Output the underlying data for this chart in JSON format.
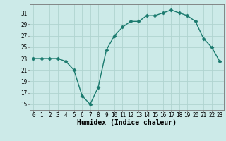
{
  "x": [
    0,
    1,
    2,
    3,
    4,
    5,
    6,
    7,
    8,
    9,
    10,
    11,
    12,
    13,
    14,
    15,
    16,
    17,
    18,
    19,
    20,
    21,
    22,
    23
  ],
  "y": [
    23,
    23,
    23,
    23,
    22.5,
    21,
    16.5,
    15,
    18,
    24.5,
    27,
    28.5,
    29.5,
    29.5,
    30.5,
    30.5,
    31,
    31.5,
    31,
    30.5,
    29.5,
    26.5,
    25,
    22.5
  ],
  "line_color": "#1a7a6e",
  "marker": "D",
  "marker_size": 2.5,
  "bg_color": "#cceae8",
  "grid_color": "#b0d4d0",
  "axis_color": "#777777",
  "xlabel": "Humidex (Indice chaleur)",
  "ylim": [
    14,
    32.5
  ],
  "xlim": [
    -0.5,
    23.5
  ],
  "yticks": [
    15,
    17,
    19,
    21,
    23,
    25,
    27,
    29,
    31
  ],
  "xticks": [
    0,
    1,
    2,
    3,
    4,
    5,
    6,
    7,
    8,
    9,
    10,
    11,
    12,
    13,
    14,
    15,
    16,
    17,
    18,
    19,
    20,
    21,
    22,
    23
  ],
  "xlabel_fontsize": 7,
  "tick_fontsize": 5.5,
  "linewidth": 1.0
}
